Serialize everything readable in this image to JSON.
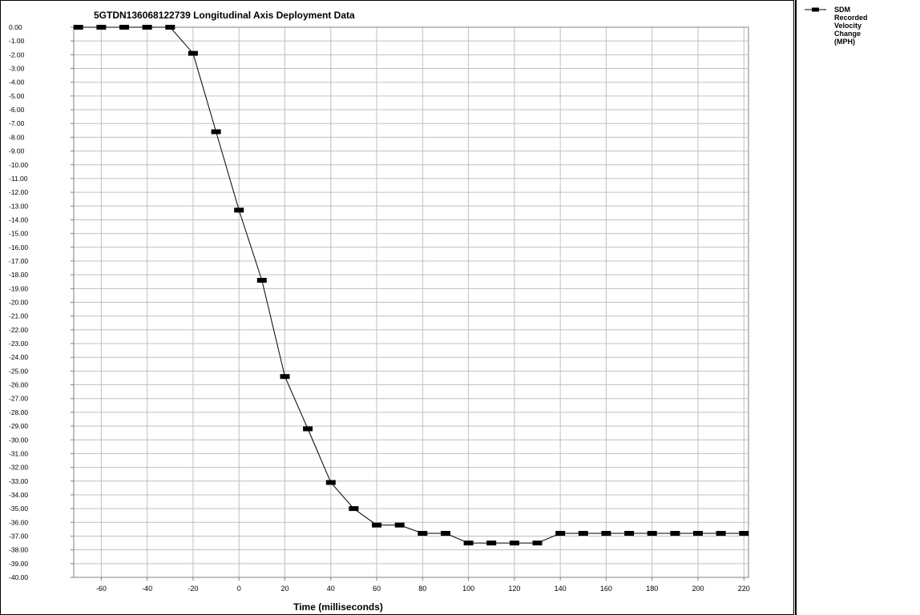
{
  "chart_data": {
    "type": "line",
    "title": "5GTDN136068122739  Longitudinal Axis Deployment Data",
    "xlabel": "Time (milliseconds)",
    "ylabel": "",
    "xlim": [
      -72,
      222
    ],
    "ylim": [
      -40,
      0
    ],
    "x_ticks": [
      -60,
      -40,
      -20,
      0,
      20,
      40,
      60,
      80,
      100,
      120,
      140,
      160,
      180,
      200,
      220
    ],
    "y_tick_step": 1,
    "y_tick_decimals": 2,
    "grid": true,
    "legend_position": "right",
    "series": [
      {
        "name": "SDM Recorded Velocity Change (MPH)",
        "legend_lines": [
          "SDM",
          "Recorded",
          "Velocity",
          "Change",
          "(MPH)"
        ],
        "x": [
          -70,
          -60,
          -50,
          -40,
          -30,
          -20,
          -10,
          0,
          10,
          20,
          30,
          40,
          50,
          60,
          70,
          80,
          90,
          100,
          110,
          120,
          130,
          140,
          150,
          160,
          170,
          180,
          190,
          200,
          210,
          220
        ],
        "y": [
          0,
          0,
          0,
          0,
          0,
          -1.9,
          -7.6,
          -13.3,
          -18.4,
          -25.4,
          -29.2,
          -33.1,
          -35.0,
          -36.2,
          -36.2,
          -36.8,
          -36.8,
          -37.5,
          -37.5,
          -37.5,
          -37.5,
          -36.8,
          -36.8,
          -36.8,
          -36.8,
          -36.8,
          -36.8,
          -36.8,
          -36.8,
          -36.8
        ]
      }
    ]
  }
}
